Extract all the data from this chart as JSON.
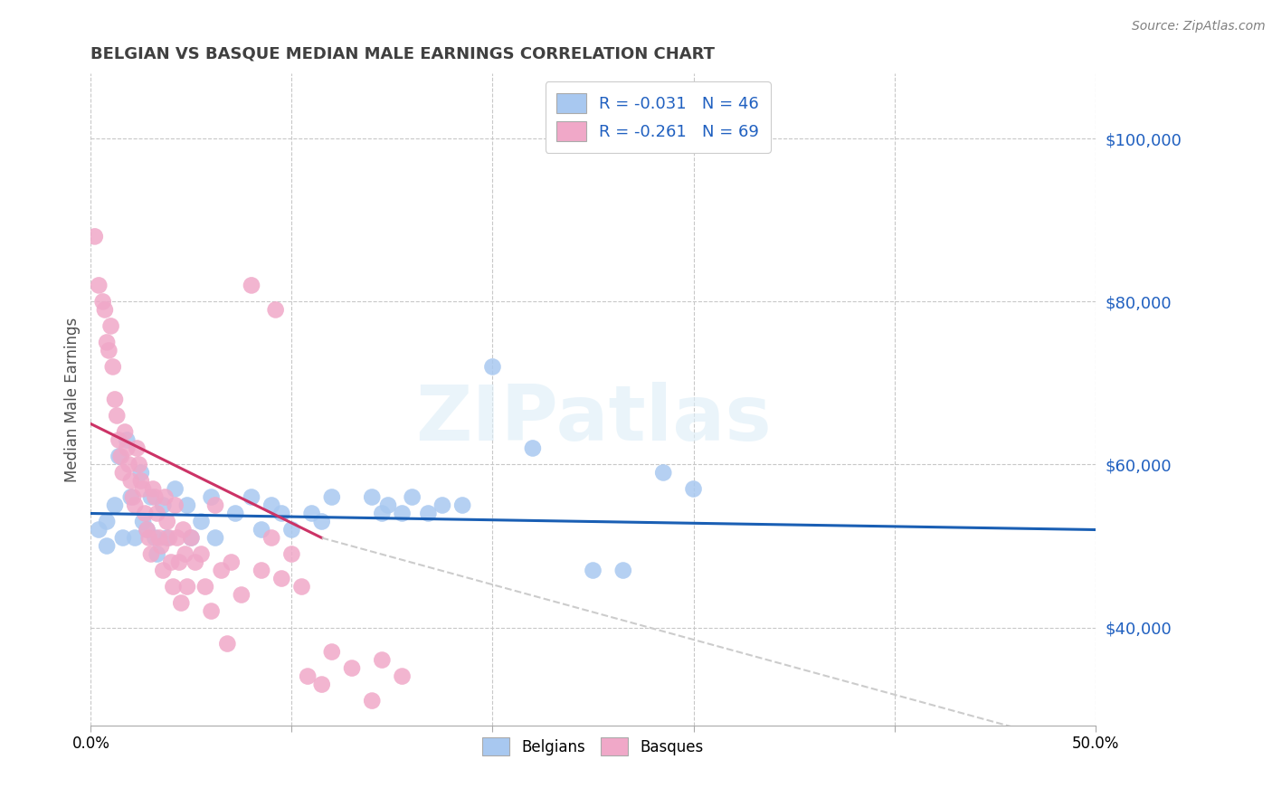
{
  "title": "BELGIAN VS BASQUE MEDIAN MALE EARNINGS CORRELATION CHART",
  "source": "Source: ZipAtlas.com",
  "ylabel": "Median Male Earnings",
  "xlim": [
    0.0,
    0.5
  ],
  "ylim": [
    28000,
    108000
  ],
  "xtick_vals": [
    0.0,
    0.1,
    0.2,
    0.3,
    0.4,
    0.5
  ],
  "ytick_vals": [
    40000,
    60000,
    80000,
    100000
  ],
  "ytick_labels": [
    "$40,000",
    "$60,000",
    "$80,000",
    "$100,000"
  ],
  "watermark_text": "ZIPatlas",
  "legend_label1": "R = -0.031   N = 46",
  "legend_label2": "R = -0.261   N = 69",
  "belgian_color": "#a8c8f0",
  "basque_color": "#f0a8c8",
  "belgian_line_color": "#1a5fb4",
  "basque_line_color": "#cc3366",
  "basque_ext_color": "#cccccc",
  "grid_color": "#c8c8c8",
  "title_color": "#404040",
  "source_color": "#808080",
  "ylabel_color": "#505050",
  "right_tick_color": "#2060c0",
  "belgian_scatter": [
    [
      0.004,
      52000
    ],
    [
      0.008,
      53000
    ],
    [
      0.008,
      50000
    ],
    [
      0.012,
      55000
    ],
    [
      0.014,
      61000
    ],
    [
      0.016,
      51000
    ],
    [
      0.018,
      63000
    ],
    [
      0.02,
      56000
    ],
    [
      0.022,
      51000
    ],
    [
      0.025,
      59000
    ],
    [
      0.026,
      53000
    ],
    [
      0.028,
      52000
    ],
    [
      0.03,
      56000
    ],
    [
      0.032,
      51000
    ],
    [
      0.033,
      49000
    ],
    [
      0.036,
      55000
    ],
    [
      0.038,
      51000
    ],
    [
      0.042,
      57000
    ],
    [
      0.048,
      55000
    ],
    [
      0.05,
      51000
    ],
    [
      0.055,
      53000
    ],
    [
      0.06,
      56000
    ],
    [
      0.062,
      51000
    ],
    [
      0.072,
      54000
    ],
    [
      0.08,
      56000
    ],
    [
      0.085,
      52000
    ],
    [
      0.09,
      55000
    ],
    [
      0.095,
      54000
    ],
    [
      0.1,
      52000
    ],
    [
      0.11,
      54000
    ],
    [
      0.115,
      53000
    ],
    [
      0.12,
      56000
    ],
    [
      0.14,
      56000
    ],
    [
      0.145,
      54000
    ],
    [
      0.148,
      55000
    ],
    [
      0.155,
      54000
    ],
    [
      0.16,
      56000
    ],
    [
      0.168,
      54000
    ],
    [
      0.175,
      55000
    ],
    [
      0.185,
      55000
    ],
    [
      0.2,
      72000
    ],
    [
      0.22,
      62000
    ],
    [
      0.25,
      47000
    ],
    [
      0.265,
      47000
    ],
    [
      0.285,
      59000
    ],
    [
      0.3,
      57000
    ]
  ],
  "basque_scatter": [
    [
      0.002,
      88000
    ],
    [
      0.004,
      82000
    ],
    [
      0.006,
      80000
    ],
    [
      0.007,
      79000
    ],
    [
      0.008,
      75000
    ],
    [
      0.009,
      74000
    ],
    [
      0.01,
      77000
    ],
    [
      0.011,
      72000
    ],
    [
      0.012,
      68000
    ],
    [
      0.013,
      66000
    ],
    [
      0.014,
      63000
    ],
    [
      0.015,
      61000
    ],
    [
      0.016,
      59000
    ],
    [
      0.017,
      64000
    ],
    [
      0.018,
      62000
    ],
    [
      0.019,
      60000
    ],
    [
      0.02,
      58000
    ],
    [
      0.021,
      56000
    ],
    [
      0.022,
      55000
    ],
    [
      0.023,
      62000
    ],
    [
      0.024,
      60000
    ],
    [
      0.025,
      58000
    ],
    [
      0.026,
      57000
    ],
    [
      0.027,
      54000
    ],
    [
      0.028,
      52000
    ],
    [
      0.029,
      51000
    ],
    [
      0.03,
      49000
    ],
    [
      0.031,
      57000
    ],
    [
      0.032,
      56000
    ],
    [
      0.033,
      54000
    ],
    [
      0.034,
      51000
    ],
    [
      0.035,
      50000
    ],
    [
      0.036,
      47000
    ],
    [
      0.037,
      56000
    ],
    [
      0.038,
      53000
    ],
    [
      0.039,
      51000
    ],
    [
      0.04,
      48000
    ],
    [
      0.041,
      45000
    ],
    [
      0.042,
      55000
    ],
    [
      0.043,
      51000
    ],
    [
      0.044,
      48000
    ],
    [
      0.045,
      43000
    ],
    [
      0.046,
      52000
    ],
    [
      0.047,
      49000
    ],
    [
      0.048,
      45000
    ],
    [
      0.05,
      51000
    ],
    [
      0.052,
      48000
    ],
    [
      0.055,
      49000
    ],
    [
      0.057,
      45000
    ],
    [
      0.06,
      42000
    ],
    [
      0.062,
      55000
    ],
    [
      0.065,
      47000
    ],
    [
      0.068,
      38000
    ],
    [
      0.07,
      48000
    ],
    [
      0.075,
      44000
    ],
    [
      0.08,
      82000
    ],
    [
      0.085,
      47000
    ],
    [
      0.09,
      51000
    ],
    [
      0.092,
      79000
    ],
    [
      0.095,
      46000
    ],
    [
      0.1,
      49000
    ],
    [
      0.105,
      45000
    ],
    [
      0.108,
      34000
    ],
    [
      0.115,
      33000
    ],
    [
      0.12,
      37000
    ],
    [
      0.13,
      35000
    ],
    [
      0.14,
      31000
    ],
    [
      0.145,
      36000
    ],
    [
      0.155,
      34000
    ]
  ],
  "belgian_trendline": [
    [
      0.0,
      54000
    ],
    [
      0.5,
      52000
    ]
  ],
  "basque_trendline_solid": [
    [
      0.0,
      65000
    ],
    [
      0.115,
      51000
    ]
  ],
  "basque_trendline_dashed": [
    [
      0.115,
      51000
    ],
    [
      0.5,
      25000
    ]
  ]
}
